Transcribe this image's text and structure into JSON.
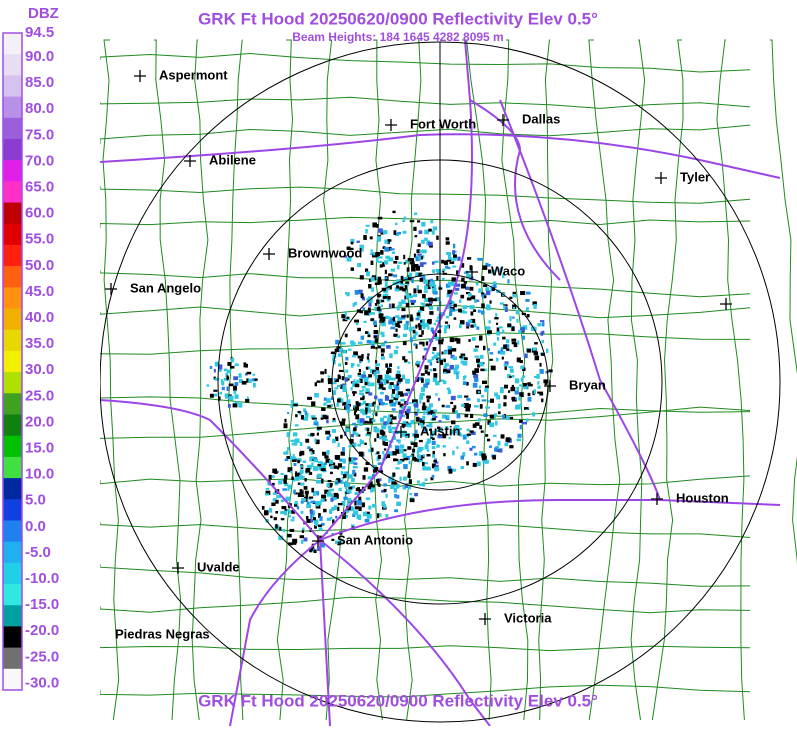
{
  "header": {
    "title": "GRK Ft Hood 20250620/0900 Reflectivity Elev 0.5°",
    "subtitle": "Beam Heights: 184 1645 4282 8095 m"
  },
  "legend": {
    "unit": "DBZ",
    "labels": [
      "94.5",
      "90.0",
      "85.0",
      "80.0",
      "75.0",
      "70.0",
      "65.0",
      "60.0",
      "55.0",
      "50.0",
      "45.0",
      "40.0",
      "35.0",
      "30.0",
      "25.0",
      "20.0",
      "15.0",
      "10.0",
      "5.0",
      "0.0",
      "-5.0",
      "-10.0",
      "-15.0",
      "-20.0",
      "-25.0",
      "-30.0"
    ]
  },
  "cities": [
    "Aspermont",
    "Fort Worth",
    "Dallas",
    "Abilene",
    "Tyler",
    "Brownwood",
    "Waco",
    "San Angelo",
    "Bryan",
    "Austin",
    "Houston",
    "San Antonio",
    "Uvalde",
    "Victoria",
    "Piedras Negras"
  ],
  "footer": {
    "title": "GRK Ft Hood 20250620/0900 Reflectivity Elev 0.5°"
  }
}
